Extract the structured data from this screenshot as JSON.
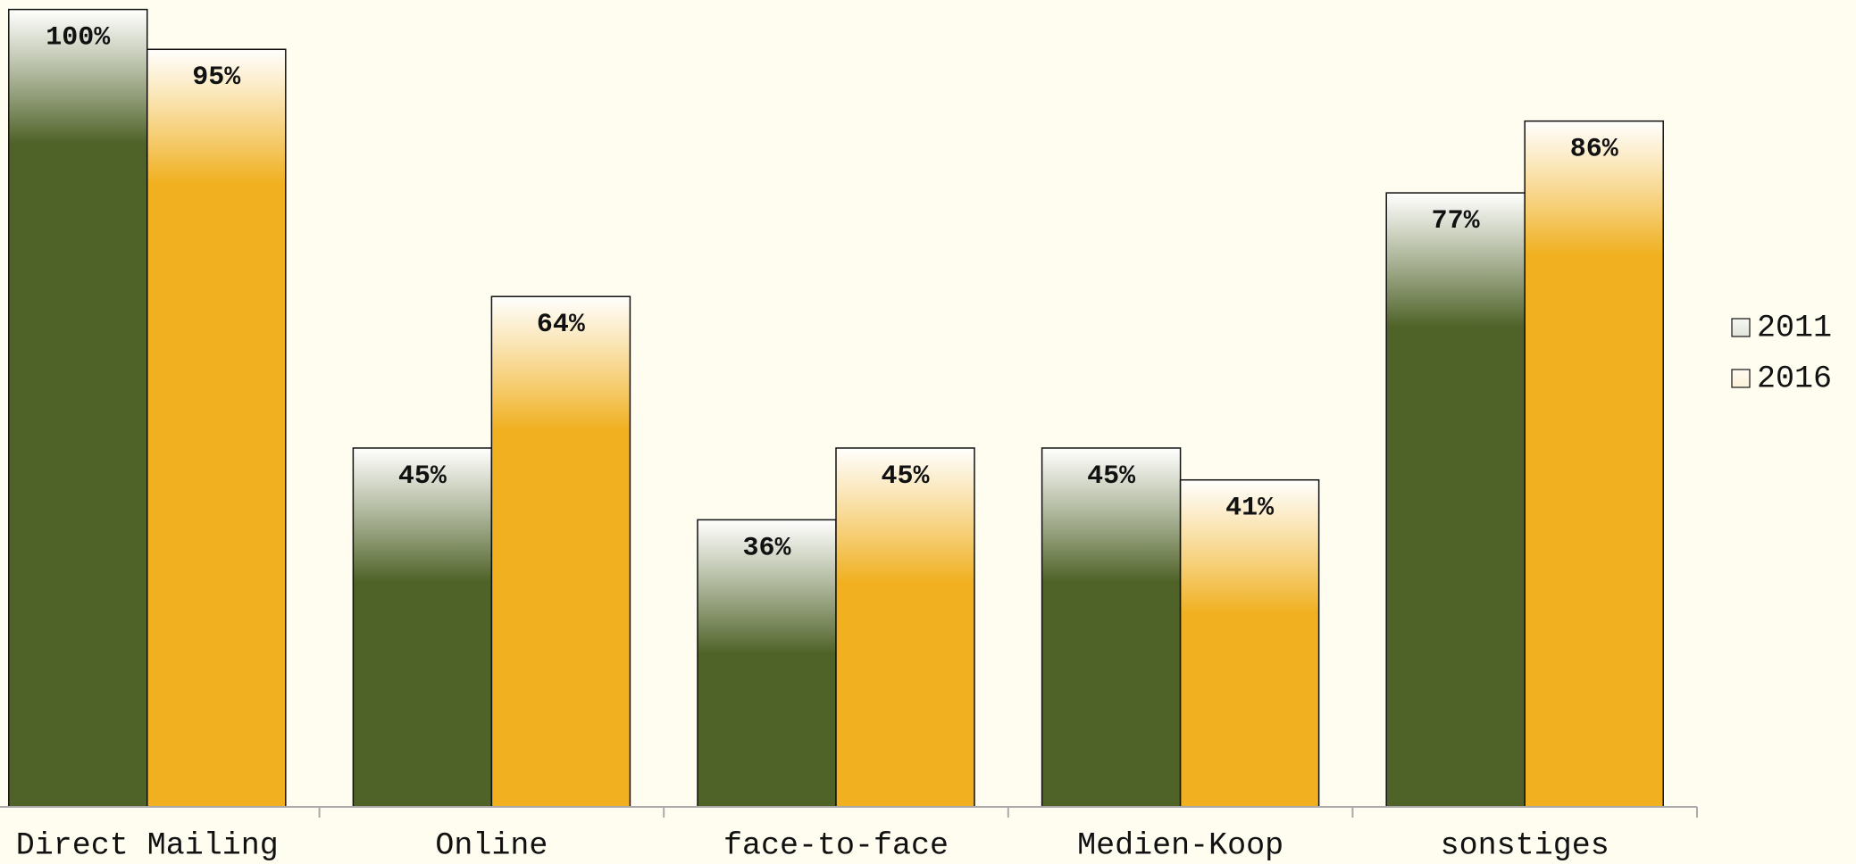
{
  "chart_data": {
    "type": "bar",
    "categories": [
      "Direct Mailing",
      "Online",
      "face-to-face",
      "Medien-Koop",
      "sonstiges"
    ],
    "series": [
      {
        "name": "2011",
        "color": "#4f6228",
        "values": [
          100,
          45,
          36,
          45,
          77
        ],
        "value_labels": [
          "100%",
          "45%",
          "36%",
          "45%",
          "77%"
        ]
      },
      {
        "name": "2016",
        "color": "#f0b020",
        "values": [
          95,
          64,
          45,
          41,
          86
        ],
        "value_labels": [
          "95%",
          "64%",
          "45%",
          "41%",
          "86%"
        ]
      }
    ],
    "ylim": [
      0,
      100
    ],
    "legend": "right"
  }
}
